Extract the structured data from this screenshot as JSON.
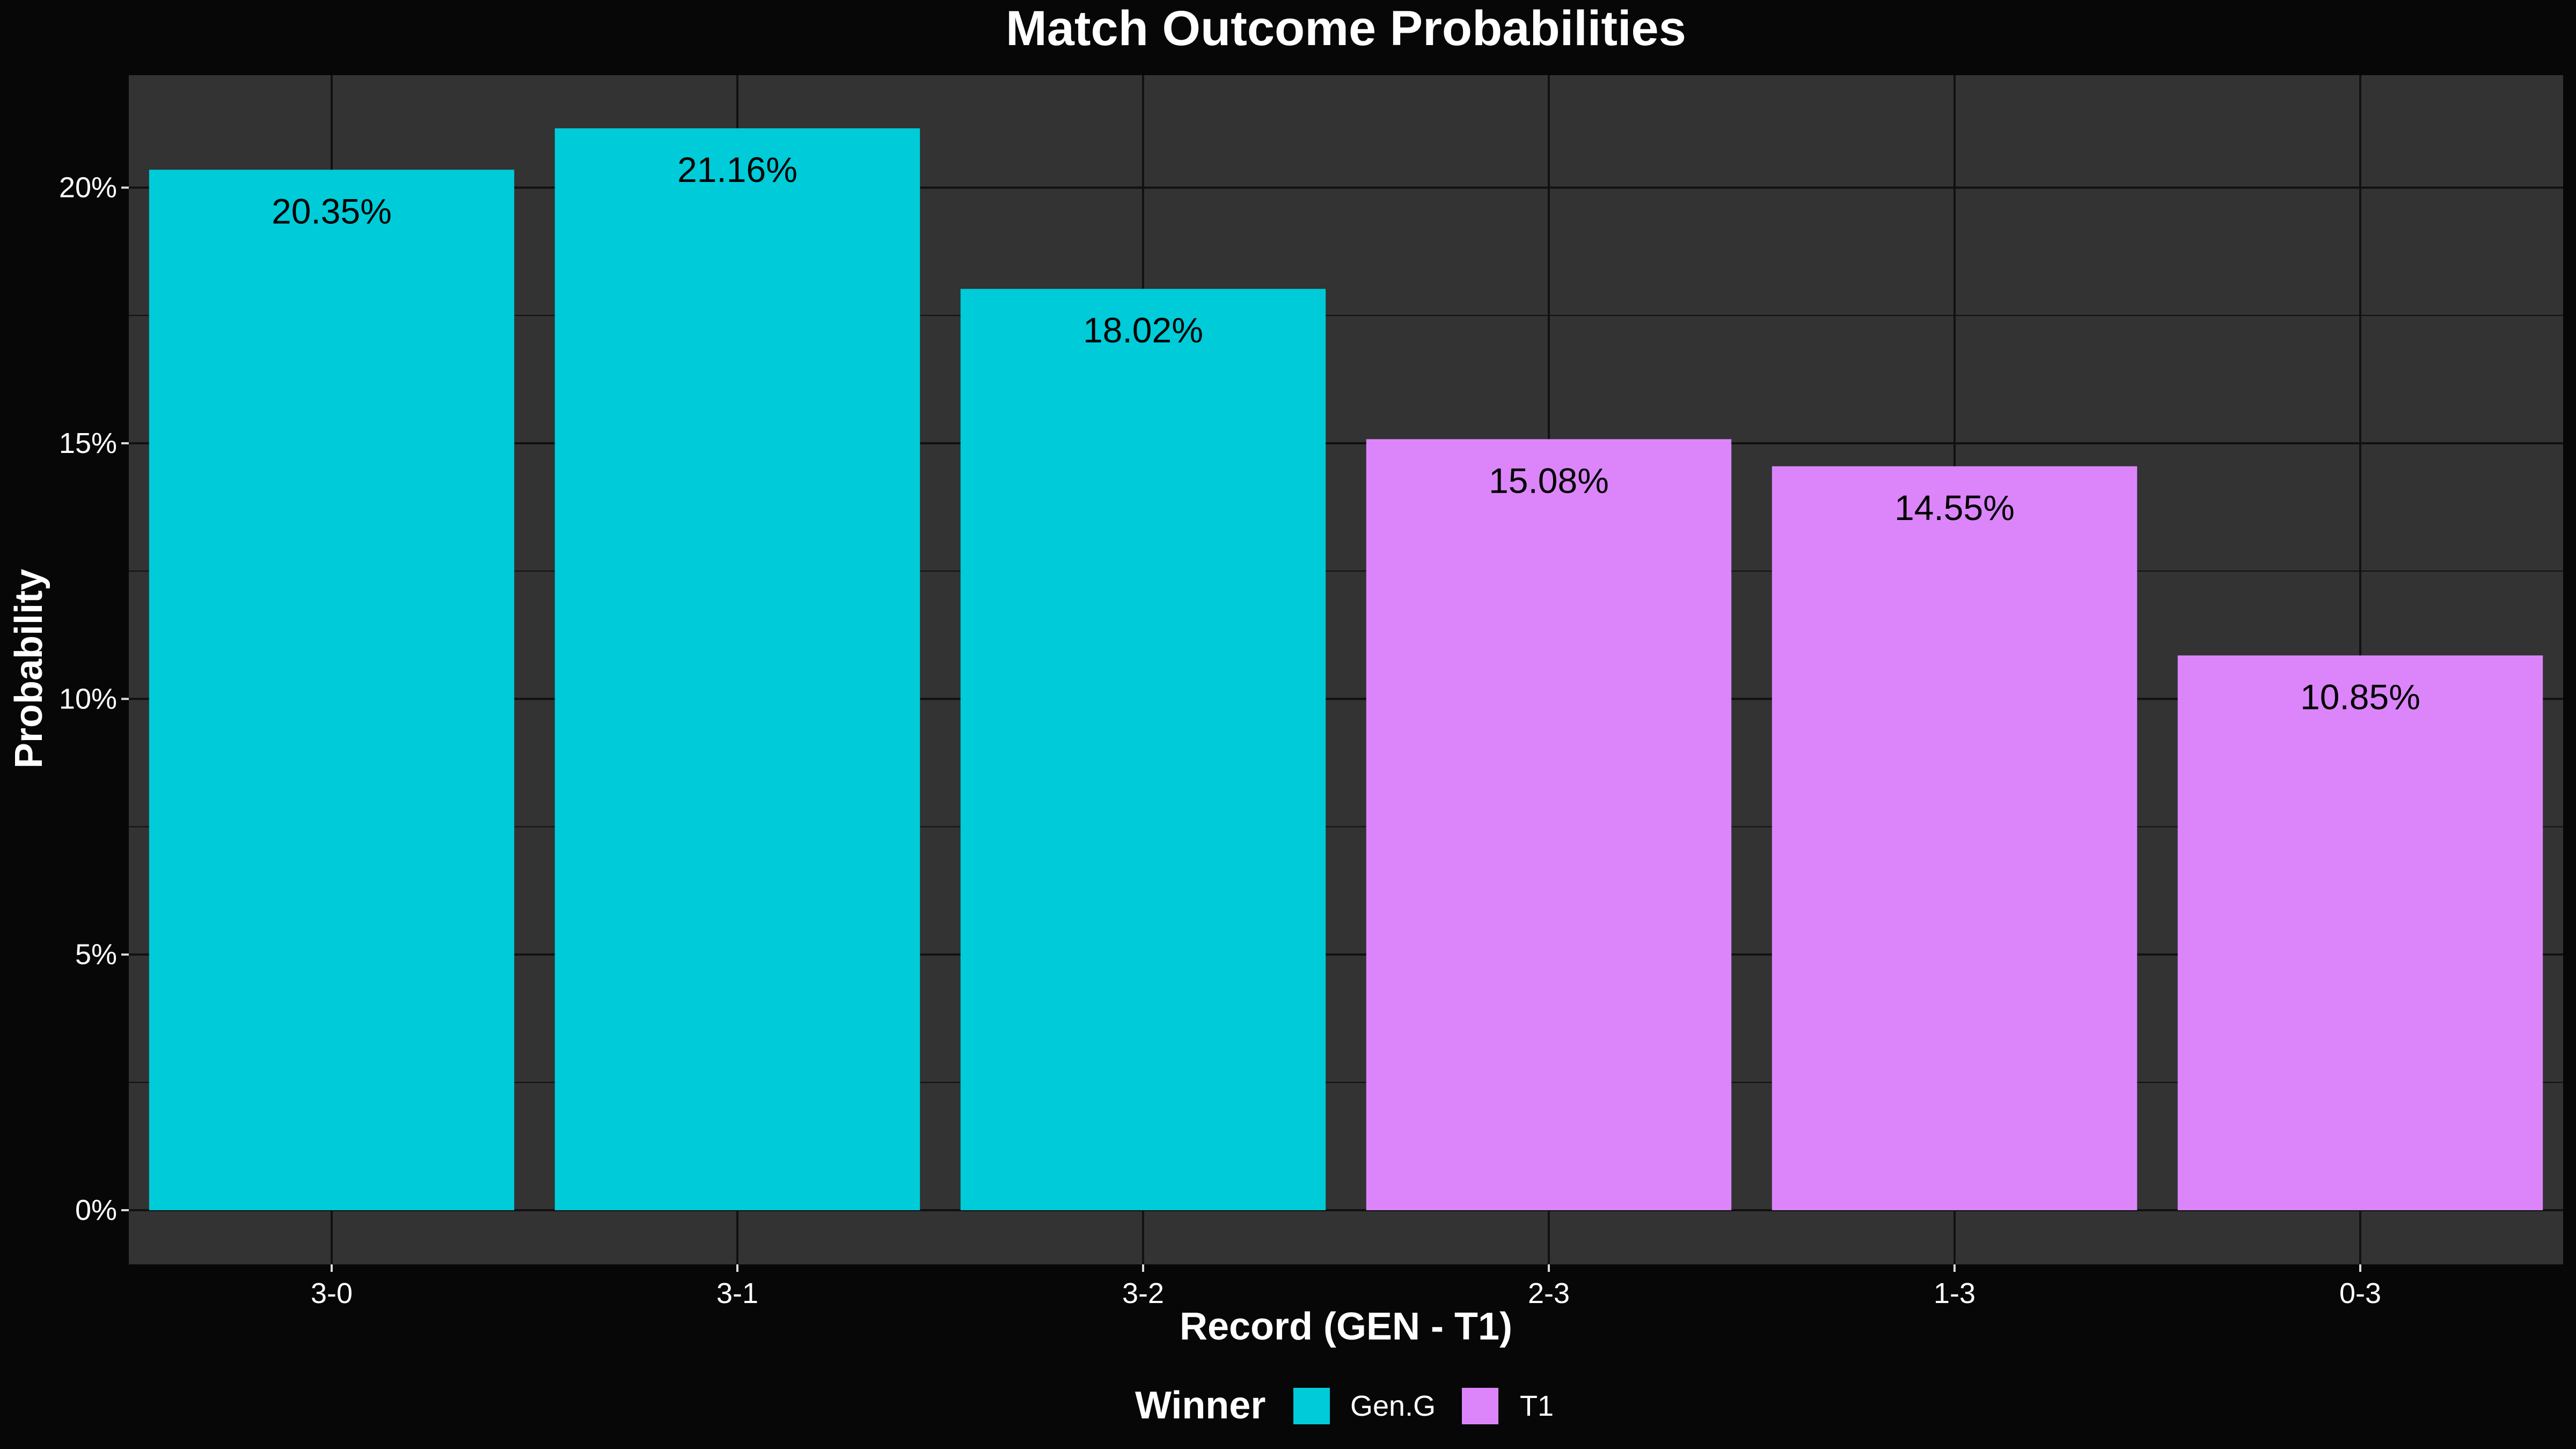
{
  "chart_data": {
    "type": "bar",
    "title": "Match Outcome Probabilities",
    "xlabel": "Record (GEN - T1)",
    "ylabel": "Probability",
    "categories": [
      "3-0",
      "3-1",
      "3-2",
      "2-3",
      "1-3",
      "0-3"
    ],
    "values": [
      20.35,
      21.16,
      18.02,
      15.08,
      14.55,
      10.85
    ],
    "value_labels": [
      "20.35%",
      "21.16%",
      "18.02%",
      "15.08%",
      "14.55%",
      "10.85%"
    ],
    "winners": [
      "Gen.G",
      "Gen.G",
      "Gen.G",
      "T1",
      "T1",
      "T1"
    ],
    "ylim": [
      -1.06,
      22.2
    ],
    "yticks": [
      0,
      5,
      10,
      15,
      20
    ],
    "ytick_labels": [
      "0%",
      "5%",
      "10%",
      "15%",
      "20%"
    ],
    "grid": true,
    "legend": {
      "title": "Winner",
      "position": "bottom",
      "entries": [
        {
          "name": "Gen.G",
          "color": "#00CBD8"
        },
        {
          "name": "T1",
          "color": "#DC85FB"
        }
      ]
    },
    "colors": {
      "background": "#070707",
      "panel": "#333333",
      "grid": "#111111",
      "text": "#FFFFFF",
      "bar_label": "#000000"
    }
  }
}
